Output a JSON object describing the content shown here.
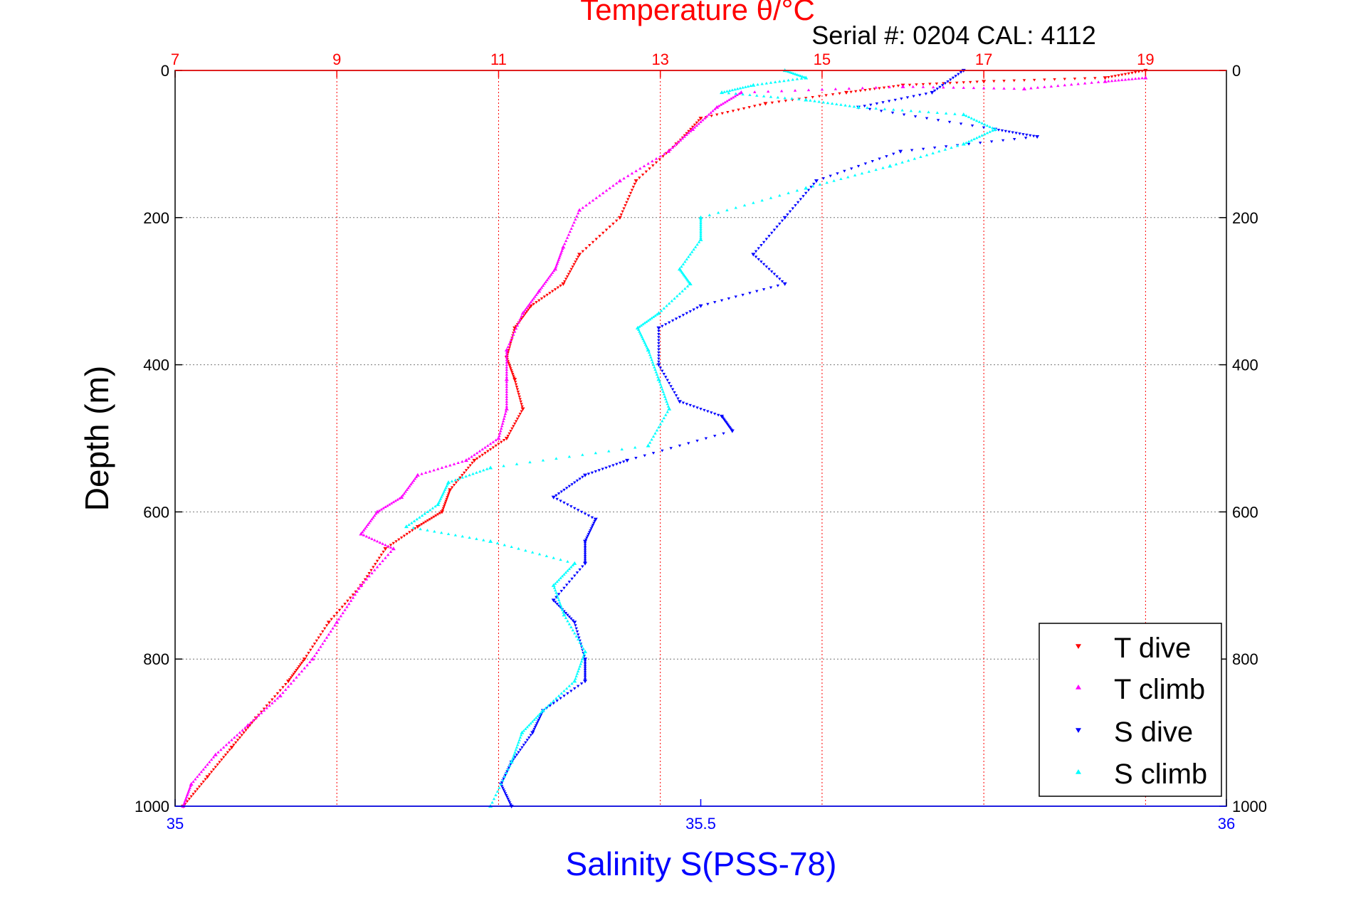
{
  "chart_data": {
    "type": "scatter",
    "top_title": "Temperature θ/°C",
    "header_text": "Serial #: 0204  CAL: 4112",
    "ylabel": "Depth (m)",
    "xlabel": "Salinity S(PSS-78)",
    "y_axis": {
      "range": [
        0,
        1000
      ],
      "ticks": [
        "0",
        "200",
        "400",
        "600",
        "800",
        "1000"
      ],
      "tick_values": [
        0,
        200,
        400,
        600,
        800,
        1000
      ],
      "inverted": true
    },
    "temperature_axis": {
      "range": [
        7,
        20
      ],
      "ticks": [
        "7",
        "9",
        "11",
        "13",
        "15",
        "17",
        "19"
      ],
      "tick_values": [
        7,
        9,
        11,
        13,
        15,
        17,
        19
      ],
      "color": "#ff0000"
    },
    "salinity_axis": {
      "range": [
        35,
        36
      ],
      "ticks": [
        "35",
        "35.5",
        "36"
      ],
      "tick_values": [
        35,
        35.5,
        36
      ],
      "color": "#0000ff"
    },
    "grid": true,
    "legend_position": "bottom-right",
    "series": [
      {
        "name": "T dive",
        "axis": "temperature",
        "marker": "triangle-down",
        "color": "#ff0000",
        "points": [
          [
            19.0,
            0
          ],
          [
            18.5,
            10
          ],
          [
            17.0,
            15
          ],
          [
            16.0,
            20
          ],
          [
            15.3,
            30
          ],
          [
            14.3,
            45
          ],
          [
            13.5,
            65
          ],
          [
            13.2,
            100
          ],
          [
            12.7,
            150
          ],
          [
            12.5,
            200
          ],
          [
            12.0,
            250
          ],
          [
            11.8,
            290
          ],
          [
            11.4,
            320
          ],
          [
            11.2,
            350
          ],
          [
            11.1,
            390
          ],
          [
            11.2,
            420
          ],
          [
            11.3,
            460
          ],
          [
            11.1,
            500
          ],
          [
            10.7,
            530
          ],
          [
            10.4,
            570
          ],
          [
            10.3,
            600
          ],
          [
            10.0,
            620
          ],
          [
            9.6,
            650
          ],
          [
            9.3,
            700
          ],
          [
            8.9,
            750
          ],
          [
            8.6,
            800
          ],
          [
            8.4,
            830
          ],
          [
            8.0,
            880
          ],
          [
            7.7,
            920
          ],
          [
            7.4,
            960
          ],
          [
            7.1,
            1000
          ]
        ]
      },
      {
        "name": "T climb",
        "axis": "temperature",
        "marker": "triangle-up",
        "color": "#ff00ff",
        "points": [
          [
            19.0,
            10
          ],
          [
            18.5,
            15
          ],
          [
            17.5,
            25
          ],
          [
            16.0,
            22
          ],
          [
            14.0,
            30
          ],
          [
            13.7,
            50
          ],
          [
            13.4,
            80
          ],
          [
            13.1,
            110
          ],
          [
            12.5,
            150
          ],
          [
            12.0,
            190
          ],
          [
            11.8,
            240
          ],
          [
            11.7,
            270
          ],
          [
            11.5,
            300
          ],
          [
            11.3,
            330
          ],
          [
            11.1,
            380
          ],
          [
            11.1,
            420
          ],
          [
            11.1,
            460
          ],
          [
            11.0,
            500
          ],
          [
            10.6,
            530
          ],
          [
            10.0,
            550
          ],
          [
            9.8,
            580
          ],
          [
            9.5,
            600
          ],
          [
            9.3,
            630
          ],
          [
            9.7,
            650
          ],
          [
            9.3,
            700
          ],
          [
            9.0,
            750
          ],
          [
            8.7,
            800
          ],
          [
            8.3,
            850
          ],
          [
            7.9,
            890
          ],
          [
            7.5,
            930
          ],
          [
            7.2,
            970
          ],
          [
            7.1,
            1000
          ]
        ]
      },
      {
        "name": "S dive",
        "axis": "salinity",
        "marker": "triangle-down",
        "color": "#0000ff",
        "points": [
          [
            35.75,
            0
          ],
          [
            35.72,
            30
          ],
          [
            35.65,
            50
          ],
          [
            35.78,
            80
          ],
          [
            35.82,
            90
          ],
          [
            35.69,
            110
          ],
          [
            35.61,
            150
          ],
          [
            35.58,
            200
          ],
          [
            35.55,
            250
          ],
          [
            35.58,
            290
          ],
          [
            35.5,
            320
          ],
          [
            35.46,
            350
          ],
          [
            35.46,
            400
          ],
          [
            35.48,
            450
          ],
          [
            35.52,
            470
          ],
          [
            35.53,
            490
          ],
          [
            35.43,
            530
          ],
          [
            35.39,
            550
          ],
          [
            35.36,
            580
          ],
          [
            35.4,
            610
          ],
          [
            35.39,
            640
          ],
          [
            35.39,
            670
          ],
          [
            35.36,
            720
          ],
          [
            35.38,
            750
          ],
          [
            35.39,
            800
          ],
          [
            35.39,
            830
          ],
          [
            35.35,
            870
          ],
          [
            35.34,
            900
          ],
          [
            35.32,
            940
          ],
          [
            35.31,
            970
          ],
          [
            35.32,
            1000
          ]
        ]
      },
      {
        "name": "S climb",
        "axis": "salinity",
        "marker": "triangle-up",
        "color": "#00ffff",
        "points": [
          [
            35.58,
            0
          ],
          [
            35.6,
            10
          ],
          [
            35.55,
            20
          ],
          [
            35.52,
            30
          ],
          [
            35.6,
            40
          ],
          [
            35.65,
            50
          ],
          [
            35.75,
            60
          ],
          [
            35.78,
            80
          ],
          [
            35.75,
            100
          ],
          [
            35.68,
            130
          ],
          [
            35.6,
            160
          ],
          [
            35.5,
            200
          ],
          [
            35.5,
            230
          ],
          [
            35.48,
            270
          ],
          [
            35.49,
            290
          ],
          [
            35.46,
            330
          ],
          [
            35.44,
            350
          ],
          [
            35.45,
            380
          ],
          [
            35.46,
            420
          ],
          [
            35.47,
            460
          ],
          [
            35.45,
            510
          ],
          [
            35.3,
            540
          ],
          [
            35.26,
            560
          ],
          [
            35.25,
            590
          ],
          [
            35.22,
            620
          ],
          [
            35.3,
            640
          ],
          [
            35.38,
            670
          ],
          [
            35.36,
            700
          ],
          [
            35.37,
            740
          ],
          [
            35.39,
            790
          ],
          [
            35.38,
            830
          ],
          [
            35.35,
            870
          ],
          [
            35.33,
            900
          ],
          [
            35.32,
            940
          ],
          [
            35.3,
            1000
          ]
        ]
      }
    ],
    "legend": [
      "T dive",
      "T climb",
      "S dive",
      "S climb"
    ]
  }
}
